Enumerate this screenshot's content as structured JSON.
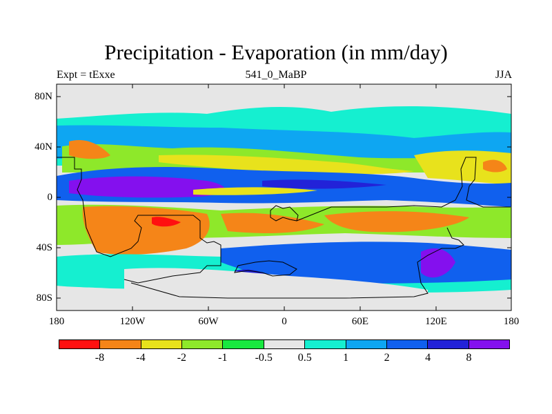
{
  "title": "Precipitation - Evaporation (in mm/day)",
  "subtitle_left": "Expt = tExxe",
  "subtitle_center": "541_0_MaBP",
  "subtitle_right": "JJA",
  "lat_labels": [
    "80N",
    "40N",
    "0",
    "40S",
    "80S"
  ],
  "lon_labels": [
    "180",
    "120W",
    "60W",
    "0",
    "60E",
    "120E",
    "180"
  ],
  "legend": {
    "colors": [
      "#ff1010",
      "#f58518",
      "#e8e21c",
      "#8ee82a",
      "#19e840",
      "#e6e6e6",
      "#15efd0",
      "#0ea6f2",
      "#1060ee",
      "#2222d8",
      "#8410ee"
    ],
    "labels": [
      "-8",
      "-4",
      "-2",
      "-1",
      "-0.5",
      "0.5",
      "1",
      "2",
      "4",
      "8"
    ]
  }
}
